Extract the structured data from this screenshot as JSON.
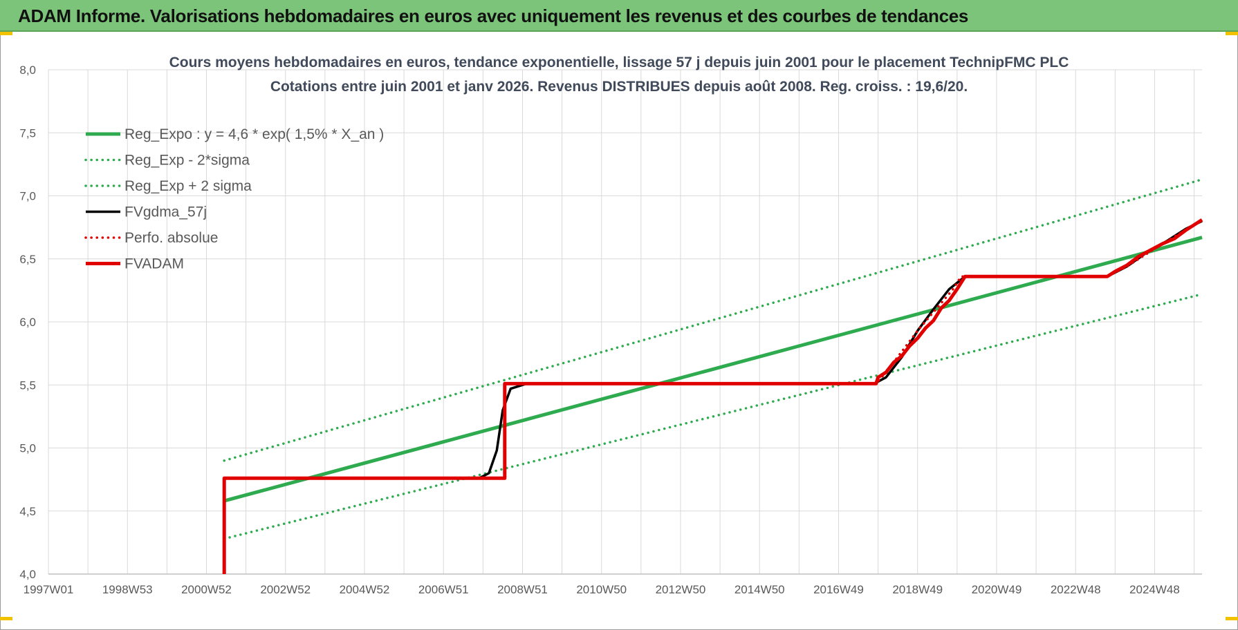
{
  "banner": {
    "title": "ADAM Informe. Valorisations hebdomadaires en euros avec uniquement les revenus et des courbes de tendances"
  },
  "colors": {
    "banner_bg": "#7cc47a",
    "reg_expo": "#2eaa4f",
    "sigma_band": "#2eaa4f",
    "fvgdma": "#000000",
    "perfo_absolue": "#e00000",
    "fvadam": "#e00000",
    "grid": "#d9d9d9"
  },
  "chart_data": {
    "type": "line",
    "title": "Cours moyens hebdomadaires en euros, tendance exponentielle, lissage 57 j depuis juin 2001 pour le placement TechnipFMC PLC",
    "subtitle": "Cotations entre juin 2001 et janv 2026. Revenus DISTRIBUES depuis août 2008. Reg. croiss. : 19,6/20.",
    "xlabel": "",
    "ylabel": "",
    "x_axis": {
      "range": [
        1997.0,
        2026.2
      ],
      "ticks": [
        {
          "label": "1997W01",
          "x": 1997.0
        },
        {
          "label": "1998W53",
          "x": 1999.0
        },
        {
          "label": "2000W52",
          "x": 2001.0
        },
        {
          "label": "2002W52",
          "x": 2003.0
        },
        {
          "label": "2004W52",
          "x": 2005.0
        },
        {
          "label": "2006W51",
          "x": 2007.0
        },
        {
          "label": "2008W51",
          "x": 2009.0
        },
        {
          "label": "2010W50",
          "x": 2011.0
        },
        {
          "label": "2012W50",
          "x": 2013.0
        },
        {
          "label": "2014W50",
          "x": 2015.0
        },
        {
          "label": "2016W49",
          "x": 2017.0
        },
        {
          "label": "2018W49",
          "x": 2019.0
        },
        {
          "label": "2020W49",
          "x": 2021.0
        },
        {
          "label": "2022W48",
          "x": 2023.0
        },
        {
          "label": "2024W48",
          "x": 2025.0
        }
      ]
    },
    "y_axis": {
      "range": [
        4.0,
        8.0
      ],
      "ticks": [
        "4,0",
        "4,5",
        "5,0",
        "5,5",
        "6,0",
        "6,5",
        "7,0",
        "7,5",
        "8,0"
      ]
    },
    "grid": true,
    "legend_position": "top-left",
    "series": [
      {
        "name": "Reg_Expo : y = 4,6 * exp( 1,5% *  X_an )",
        "style": "solid-thick",
        "color": "#2eaa4f",
        "points": [
          [
            2001.45,
            4.58
          ],
          [
            2026.2,
            6.67
          ]
        ]
      },
      {
        "name": "Reg_Exp - 2*sigma",
        "style": "dotted",
        "color": "#2eaa4f",
        "points": [
          [
            2001.45,
            4.28
          ],
          [
            2026.2,
            6.22
          ]
        ]
      },
      {
        "name": "Reg_Exp + 2 sigma",
        "style": "dotted",
        "color": "#2eaa4f",
        "points": [
          [
            2001.45,
            4.9
          ],
          [
            2026.2,
            7.13
          ]
        ]
      },
      {
        "name": "FVgdma_57j",
        "style": "solid",
        "color": "#000000",
        "points": [
          [
            2001.45,
            4.76
          ],
          [
            2007.9,
            4.76
          ],
          [
            2008.15,
            4.8
          ],
          [
            2008.35,
            4.98
          ],
          [
            2008.5,
            5.3
          ],
          [
            2008.7,
            5.47
          ],
          [
            2009.1,
            5.51
          ],
          [
            2017.9,
            5.51
          ],
          [
            2018.2,
            5.56
          ],
          [
            2018.6,
            5.72
          ],
          [
            2019.0,
            5.93
          ],
          [
            2019.4,
            6.1
          ],
          [
            2019.8,
            6.26
          ],
          [
            2020.2,
            6.36
          ],
          [
            2023.8,
            6.36
          ],
          [
            2024.3,
            6.44
          ],
          [
            2024.8,
            6.55
          ],
          [
            2025.3,
            6.64
          ],
          [
            2025.8,
            6.74
          ],
          [
            2026.2,
            6.8
          ]
        ]
      },
      {
        "name": "Perfo. absolue",
        "style": "dotted",
        "color": "#e00000",
        "points": [
          [
            2001.45,
            4.76
          ],
          [
            2008.55,
            4.76
          ],
          [
            2008.55,
            5.51
          ],
          [
            2017.95,
            5.51
          ],
          [
            2018.2,
            5.6
          ],
          [
            2019.0,
            5.93
          ],
          [
            2019.9,
            6.26
          ],
          [
            2020.1,
            6.36
          ],
          [
            2023.8,
            6.36
          ],
          [
            2024.3,
            6.44
          ],
          [
            2025.0,
            6.58
          ],
          [
            2026.2,
            6.81
          ]
        ]
      },
      {
        "name": "FVADAM",
        "style": "solid-thick",
        "color": "#e00000",
        "points": [
          [
            2001.45,
            4.0
          ],
          [
            2001.45,
            4.76
          ],
          [
            2008.55,
            4.76
          ],
          [
            2008.55,
            5.51
          ],
          [
            2017.95,
            5.51
          ],
          [
            2018.0,
            5.56
          ],
          [
            2018.2,
            5.6
          ],
          [
            2018.4,
            5.68
          ],
          [
            2018.6,
            5.73
          ],
          [
            2018.8,
            5.81
          ],
          [
            2019.0,
            5.87
          ],
          [
            2019.2,
            5.95
          ],
          [
            2019.4,
            6.01
          ],
          [
            2019.6,
            6.11
          ],
          [
            2019.8,
            6.17
          ],
          [
            2020.0,
            6.26
          ],
          [
            2020.2,
            6.36
          ],
          [
            2023.8,
            6.36
          ],
          [
            2024.0,
            6.4
          ],
          [
            2024.3,
            6.45
          ],
          [
            2024.6,
            6.52
          ],
          [
            2024.9,
            6.57
          ],
          [
            2025.2,
            6.62
          ],
          [
            2025.5,
            6.66
          ],
          [
            2025.8,
            6.73
          ],
          [
            2026.2,
            6.81
          ]
        ]
      }
    ]
  }
}
